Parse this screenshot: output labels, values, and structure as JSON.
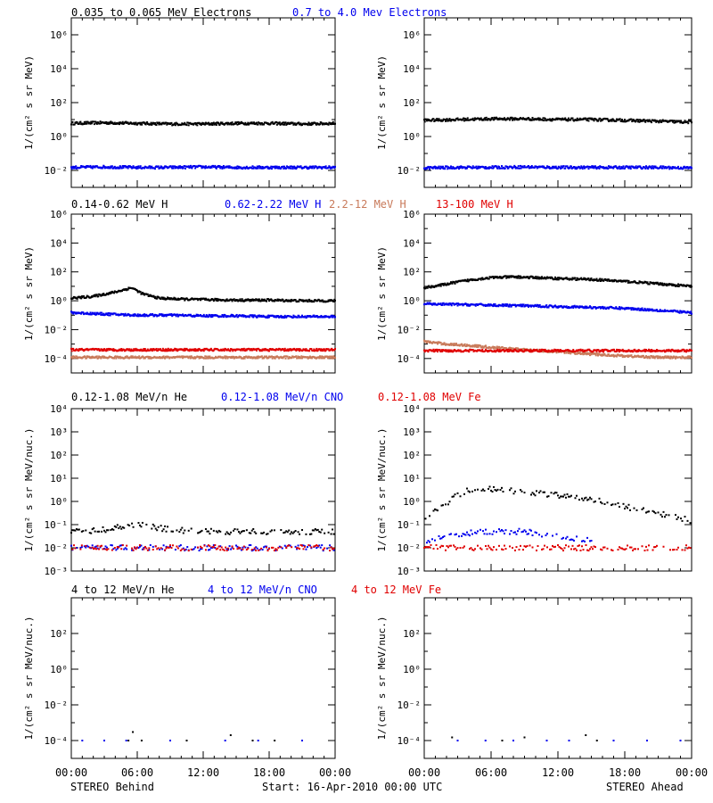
{
  "colors": {
    "black": "#000000",
    "blue": "#0000ee",
    "tan": "#c87a5a",
    "red": "#e00000"
  },
  "footer": {
    "left": "STEREO Behind",
    "center": "Start: 16-Apr-2010 00:00 UTC",
    "right": "STEREO Ahead"
  },
  "x_axis": {
    "range_hours": [
      0,
      24
    ],
    "ticks": [
      0,
      6,
      12,
      18,
      24
    ],
    "tick_labels": [
      "00:00",
      "06:00",
      "12:00",
      "18:00",
      "00:00"
    ]
  },
  "rows": [
    {
      "id": "electrons",
      "ylabel": "1/(cm² s sr MeV)",
      "yrange_exp": [
        -3,
        7
      ],
      "ytick_exps": [
        -2,
        0,
        2,
        4,
        6
      ],
      "legend": [
        {
          "text": "0.035 to 0.065 MeV Electrons",
          "color": "#000000"
        },
        {
          "text": "0.7 to 4.0 Mev Electrons",
          "color": "#0000ee"
        }
      ]
    },
    {
      "id": "protons",
      "ylabel": "1/(cm² s sr MeV)",
      "yrange_exp": [
        -5,
        6
      ],
      "ytick_exps": [
        -4,
        -2,
        0,
        2,
        4,
        6
      ],
      "legend": [
        {
          "text": "0.14-0.62 MeV H",
          "color": "#000000"
        },
        {
          "text": "0.62-2.22 MeV H",
          "color": "#0000ee"
        },
        {
          "text": "2.2-12 MeV H",
          "color": "#c87a5a"
        },
        {
          "text": "13-100 MeV H",
          "color": "#e00000"
        }
      ]
    },
    {
      "id": "low-ions",
      "ylabel": "1/(cm² s sr MeV/nuc.)",
      "yrange_exp": [
        -3,
        4
      ],
      "ytick_exps": [
        -3,
        -2,
        -1,
        0,
        1,
        2,
        3,
        4
      ],
      "legend": [
        {
          "text": "0.12-1.08 MeV/n He",
          "color": "#000000"
        },
        {
          "text": "0.12-1.08 MeV/n CNO",
          "color": "#0000ee"
        },
        {
          "text": "0.12-1.08 MeV Fe",
          "color": "#e00000"
        }
      ]
    },
    {
      "id": "high-ions",
      "ylabel": "1/(cm² s sr MeV/nuc.)",
      "yrange_exp": [
        -5,
        4
      ],
      "ytick_exps": [
        -4,
        -2,
        0,
        2
      ],
      "legend": [
        {
          "text": "4 to 12 MeV/n He",
          "color": "#000000"
        },
        {
          "text": "4 to 12 MeV/n CNO",
          "color": "#0000ee"
        },
        {
          "text": "4 to 12 MeV Fe",
          "color": "#e00000"
        }
      ]
    }
  ],
  "chart_data": [
    {
      "type": "scatter",
      "panel": "electrons-behind",
      "yscale": "log",
      "series": [
        {
          "name": "0.035 to 0.065 MeV Electrons",
          "color": "#000000",
          "x": [
            0,
            3,
            6,
            9,
            12,
            15,
            18,
            21,
            24
          ],
          "y": [
            6,
            6.5,
            6,
            5.5,
            5.5,
            6,
            6,
            5.5,
            6
          ]
        },
        {
          "name": "0.7 to 4.0 Mev Electrons",
          "color": "#0000ee",
          "x": [
            0,
            3,
            6,
            9,
            12,
            15,
            18,
            21,
            24
          ],
          "y": [
            0.015,
            0.016,
            0.015,
            0.015,
            0.016,
            0.015,
            0.015,
            0.015,
            0.015
          ]
        }
      ]
    },
    {
      "type": "scatter",
      "panel": "electrons-ahead",
      "yscale": "log",
      "series": [
        {
          "name": "0.035 to 0.065 MeV Electrons",
          "color": "#000000",
          "x": [
            0,
            3,
            6,
            9,
            12,
            15,
            18,
            21,
            24
          ],
          "y": [
            9,
            10,
            11,
            11,
            10,
            10,
            9,
            8,
            7
          ]
        },
        {
          "name": "0.7 to 4.0 Mev Electrons",
          "color": "#0000ee",
          "x": [
            0,
            3,
            6,
            9,
            12,
            15,
            18,
            21,
            24
          ],
          "y": [
            0.014,
            0.015,
            0.015,
            0.016,
            0.015,
            0.015,
            0.015,
            0.015,
            0.014
          ]
        }
      ]
    },
    {
      "type": "scatter",
      "panel": "protons-behind",
      "yscale": "log",
      "series": [
        {
          "name": "0.14-0.62 MeV H",
          "color": "#000000",
          "x": [
            0,
            2,
            4,
            5.5,
            6.5,
            8,
            10,
            12,
            15,
            18,
            21,
            24
          ],
          "y": [
            1.5,
            2,
            4,
            8,
            3,
            1.5,
            1.3,
            1.2,
            1.1,
            1.1,
            1.0,
            1.0
          ]
        },
        {
          "name": "0.62-2.22 MeV H",
          "color": "#0000ee",
          "x": [
            0,
            3,
            6,
            9,
            12,
            15,
            18,
            21,
            24
          ],
          "y": [
            0.15,
            0.12,
            0.1,
            0.1,
            0.09,
            0.09,
            0.08,
            0.08,
            0.08
          ]
        },
        {
          "name": "2.2-12 MeV H",
          "color": "#c87a5a",
          "x": [
            0,
            6,
            12,
            18,
            24
          ],
          "y": [
            0.00012,
            0.00012,
            0.00012,
            0.00012,
            0.00012
          ]
        },
        {
          "name": "13-100 MeV H",
          "color": "#e00000",
          "x": [
            0,
            6,
            12,
            18,
            24
          ],
          "y": [
            0.0004,
            0.0004,
            0.0004,
            0.0004,
            0.0004
          ]
        }
      ]
    },
    {
      "type": "scatter",
      "panel": "protons-ahead",
      "yscale": "log",
      "series": [
        {
          "name": "0.14-0.62 MeV H",
          "color": "#000000",
          "x": [
            0,
            1.5,
            3,
            4.5,
            6,
            8,
            10,
            12,
            15,
            18,
            21,
            24
          ],
          "y": [
            8,
            12,
            20,
            30,
            40,
            45,
            40,
            35,
            30,
            22,
            15,
            10
          ]
        },
        {
          "name": "0.62-2.22 MeV H",
          "color": "#0000ee",
          "x": [
            0,
            3,
            6,
            9,
            12,
            15,
            18,
            21,
            24
          ],
          "y": [
            0.6,
            0.55,
            0.5,
            0.45,
            0.4,
            0.35,
            0.3,
            0.22,
            0.15
          ]
        },
        {
          "name": "2.2-12 MeV H",
          "color": "#c87a5a",
          "x": [
            0,
            2,
            4,
            6,
            9,
            12,
            15,
            18,
            21,
            24
          ],
          "y": [
            0.0015,
            0.001,
            0.0008,
            0.0006,
            0.0004,
            0.0003,
            0.0002,
            0.00015,
            0.00012,
            0.00012
          ]
        },
        {
          "name": "13-100 MeV H",
          "color": "#e00000",
          "x": [
            0,
            6,
            12,
            18,
            24
          ],
          "y": [
            0.00035,
            0.00035,
            0.00035,
            0.00035,
            0.00035
          ]
        }
      ]
    },
    {
      "type": "scatter",
      "panel": "low-ions-behind",
      "yscale": "log",
      "series": [
        {
          "name": "0.12-1.08 MeV/n He",
          "color": "#000000",
          "x": [
            0,
            3,
            6,
            9,
            12,
            15,
            18,
            21,
            24
          ],
          "y": [
            0.05,
            0.06,
            0.1,
            0.06,
            0.05,
            0.05,
            0.05,
            0.05,
            0.05
          ]
        },
        {
          "name": "0.12-1.08 MeV/n CNO",
          "color": "#0000ee",
          "x": [
            0,
            6,
            12,
            18,
            24
          ],
          "y": [
            0.01,
            0.01,
            0.01,
            0.01,
            0.01
          ]
        },
        {
          "name": "0.12-1.08 MeV Fe",
          "color": "#e00000",
          "x": [
            0,
            6,
            12,
            18,
            24
          ],
          "y": [
            0.01,
            0.01,
            0.01,
            0.01,
            0.01
          ]
        }
      ]
    },
    {
      "type": "scatter",
      "panel": "low-ions-ahead",
      "yscale": "log",
      "series": [
        {
          "name": "0.12-1.08 MeV/n He",
          "color": "#000000",
          "x": [
            0,
            1.5,
            3,
            4.5,
            6,
            9,
            12,
            15,
            18,
            21,
            24
          ],
          "y": [
            0.2,
            0.5,
            2,
            3.5,
            3.5,
            2.5,
            1.8,
            1.2,
            0.6,
            0.3,
            0.15
          ]
        },
        {
          "name": "0.12-1.08 MeV/n CNO",
          "color": "#0000ee",
          "x": [
            0,
            3,
            6,
            9,
            12,
            15
          ],
          "y": [
            0.02,
            0.04,
            0.05,
            0.05,
            0.03,
            0.02
          ]
        },
        {
          "name": "0.12-1.08 MeV Fe",
          "color": "#e00000",
          "x": [
            0,
            6,
            12,
            18,
            24
          ],
          "y": [
            0.01,
            0.01,
            0.01,
            0.01,
            0.01
          ]
        }
      ]
    },
    {
      "type": "scatter",
      "panel": "high-ions-behind",
      "yscale": "log",
      "series": [
        {
          "name": "4 to 12 MeV/n He",
          "color": "#000000",
          "x": [
            5.2,
            5.6,
            6.4,
            10.5,
            14.5,
            16.5,
            18.5
          ],
          "y": [
            0.0001,
            0.0003,
            0.0001,
            0.0001,
            0.0002,
            0.0001,
            0.0001
          ]
        },
        {
          "name": "4 to 12 MeV/n CNO",
          "color": "#0000ee",
          "x": [
            1,
            3,
            5,
            9,
            14,
            17,
            21
          ],
          "y": [
            0.0001,
            0.0001,
            0.0001,
            0.0001,
            0.0001,
            0.0001,
            0.0001
          ]
        }
      ]
    },
    {
      "type": "scatter",
      "panel": "high-ions-ahead",
      "yscale": "log",
      "series": [
        {
          "name": "4 to 12 MeV/n He",
          "color": "#000000",
          "x": [
            2.5,
            7,
            9,
            14.5,
            15.5
          ],
          "y": [
            0.00015,
            0.0001,
            0.00015,
            0.0002,
            0.0001
          ]
        },
        {
          "name": "4 to 12 MeV/n CNO",
          "color": "#0000ee",
          "x": [
            3,
            5.5,
            8,
            11,
            13,
            17,
            20,
            23
          ],
          "y": [
            0.0001,
            0.0001,
            0.0001,
            0.0001,
            0.0001,
            0.0001,
            0.0001,
            0.0001
          ]
        }
      ]
    }
  ]
}
